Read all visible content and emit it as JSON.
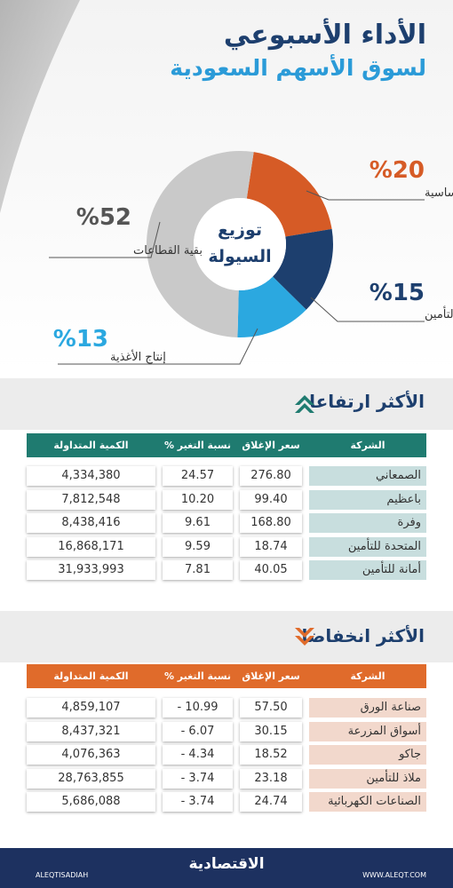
{
  "header": {
    "title": "الأداء الأسبوعي",
    "subtitle": "لسوق الأسهم السعودية"
  },
  "chart_data": {
    "type": "pie",
    "center_label": [
      "توزيع",
      "السيولة"
    ],
    "categories": [
      "المواد الأساسية",
      "التأمين",
      "إنتاج الأغذية",
      "بقية القطاعات"
    ],
    "values": [
      20,
      15,
      13,
      52
    ],
    "value_labels": [
      "%20",
      "%15",
      "%13",
      "%52"
    ],
    "colors": [
      "#d65b26",
      "#1d3f6e",
      "#2ba8e0",
      "#c9c9c9"
    ]
  },
  "tables": [
    {
      "title": "الأكثر ارتفاعا",
      "color": "#1f7b70",
      "name_bg": "#c8dede",
      "columns": [
        "الشركة",
        "سعر الإغلاق",
        "نسبة التغير %",
        "الكمية المتداولة"
      ],
      "rows": [
        [
          "الصمعاني",
          "276.80",
          "24.57",
          "4,334,380"
        ],
        [
          "باعظيم",
          "99.40",
          "10.20",
          "7,812,548"
        ],
        [
          "وفرة",
          "168.80",
          "9.61",
          "8,438,416"
        ],
        [
          "المتحدة للتأمين",
          "18.74",
          "9.59",
          "16,868,171"
        ],
        [
          "أمانة للتأمين",
          "40.05",
          "7.81",
          "31,933,993"
        ]
      ]
    },
    {
      "title": "الأكثر انخفاضا",
      "color": "#e06b2b",
      "name_bg": "#f2d8cc",
      "columns": [
        "الشركة",
        "سعر الإغلاق",
        "نسبة التغير %",
        "الكمية المتداولة"
      ],
      "rows": [
        [
          "صناعة الورق",
          "57.50",
          "- 10.99",
          "4,859,107"
        ],
        [
          "أسواق المزرعة",
          "30.15",
          "- 6.07",
          "8,437,321"
        ],
        [
          "جاكو",
          "18.52",
          "- 4.34",
          "4,076,363"
        ],
        [
          "ملاذ للتأمين",
          "23.18",
          "- 3.74",
          "28,763,855"
        ],
        [
          "الصناعات الكهربائية",
          "24.74",
          "- 3.74",
          "5,686,088"
        ]
      ]
    }
  ],
  "footer": {
    "brand": "الاقتصادية",
    "handle": "ALEQTISADIAH",
    "website": "WWW.ALEQT.COM"
  }
}
